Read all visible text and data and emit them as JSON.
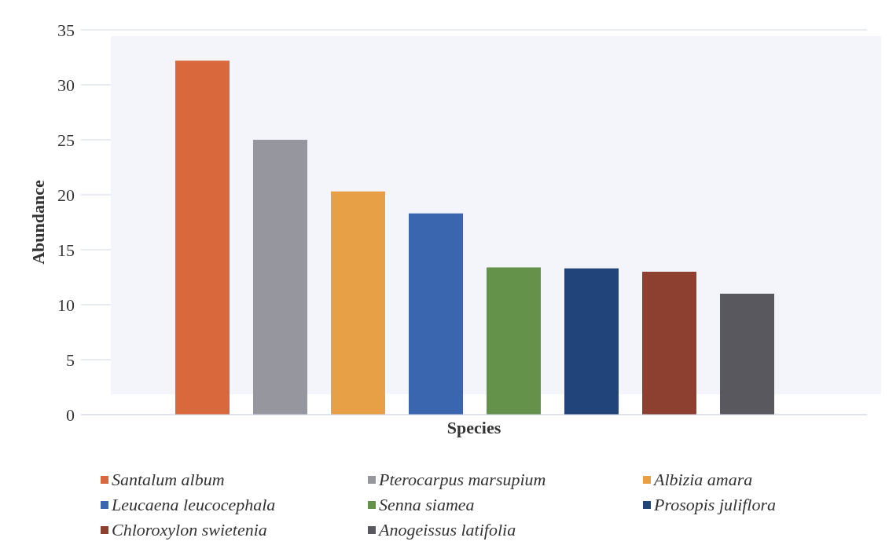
{
  "chart_data": {
    "type": "bar",
    "xlabel": "Species",
    "ylabel": "Abundance",
    "categories": [
      null
    ],
    "series": [
      {
        "name": "Santalum album",
        "color": "#d9683c",
        "values": [
          32.2
        ]
      },
      {
        "name": "Pterocarpus marsupium",
        "color": "#96969e",
        "values": [
          25.0
        ]
      },
      {
        "name": "Albizia amara",
        "color": "#e8a046",
        "values": [
          20.3
        ]
      },
      {
        "name": "Leucaena leucocephala",
        "color": "#3a66b0",
        "values": [
          18.3
        ]
      },
      {
        "name": "Senna siamea",
        "color": "#64924a",
        "values": [
          13.4
        ]
      },
      {
        "name": "Prosopis juliflora",
        "color": "#21457a",
        "values": [
          13.3
        ]
      },
      {
        "name": "Chloroxylon swietenia",
        "color": "#8e4030",
        "values": [
          13.0
        ]
      },
      {
        "name": "Anogeissus latifolia",
        "color": "#58585e",
        "values": [
          11.0
        ]
      }
    ],
    "ylim": [
      0,
      35
    ],
    "yticks": [
      0,
      5,
      10,
      15,
      20,
      25,
      30,
      35
    ],
    "grid": "y",
    "legend": "bottom"
  }
}
